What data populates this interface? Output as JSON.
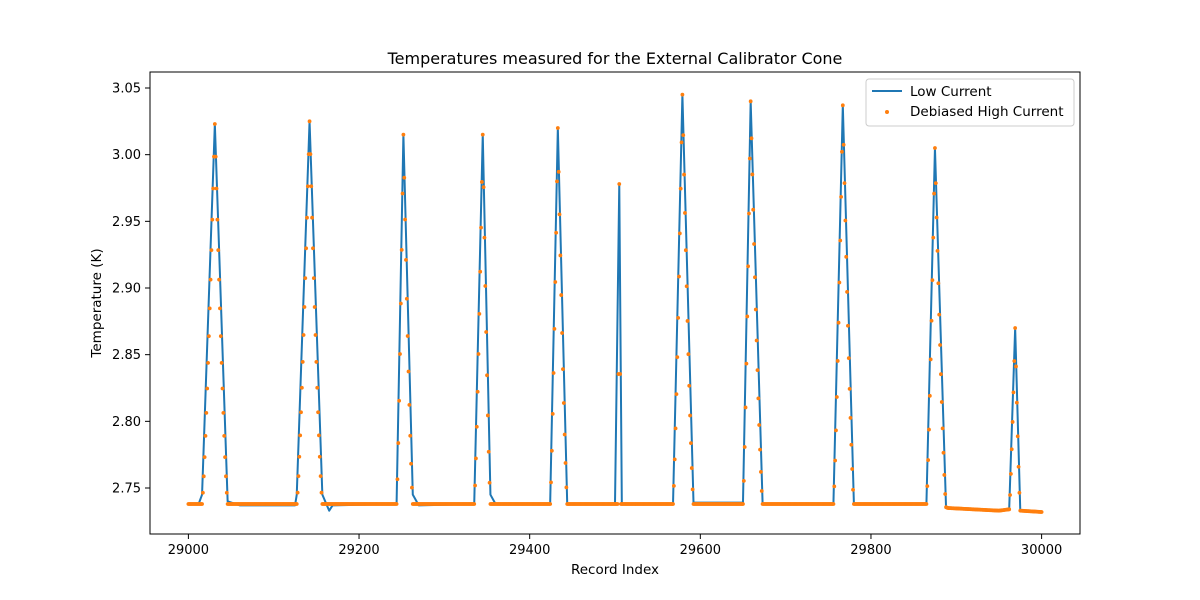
{
  "chart_data": {
    "type": "line",
    "title": "Temperatures measured for the External Calibrator Cone",
    "xlabel": "Record Index",
    "ylabel": "Temperature (K)",
    "xlim": [
      28955,
      30045
    ],
    "ylim": [
      2.7155,
      3.062
    ],
    "x_ticks": [
      29000,
      29200,
      29400,
      29600,
      29800,
      30000
    ],
    "y_ticks": [
      2.75,
      2.8,
      2.85,
      2.9,
      2.95,
      3.0,
      3.05
    ],
    "y_tick_labels": [
      "2.75",
      "2.80",
      "2.85",
      "2.90",
      "2.95",
      "3.00",
      "3.05"
    ],
    "grid": false,
    "legend_position": "top-right",
    "series": [
      {
        "name": "Low Current",
        "style": "line",
        "color": "#1f77b4",
        "x_range": [
          29000,
          30000
        ],
        "points": [
          [
            29000,
            2.738
          ],
          [
            29012,
            2.738
          ],
          [
            29016,
            2.745
          ],
          [
            29031,
            3.023
          ],
          [
            29046,
            2.74
          ],
          [
            29060,
            2.737
          ],
          [
            29125,
            2.737
          ],
          [
            29127,
            2.745
          ],
          [
            29142,
            3.025
          ],
          [
            29157,
            2.745
          ],
          [
            29165,
            2.733
          ],
          [
            29169,
            2.737
          ],
          [
            29244,
            2.738
          ],
          [
            29252,
            3.015
          ],
          [
            29263,
            2.745
          ],
          [
            29270,
            2.737
          ],
          [
            29335,
            2.738
          ],
          [
            29345,
            3.015
          ],
          [
            29354,
            2.745
          ],
          [
            29360,
            2.738
          ],
          [
            29424,
            2.738
          ],
          [
            29433,
            3.02
          ],
          [
            29444,
            2.738
          ],
          [
            29500,
            2.738
          ],
          [
            29505,
            2.978
          ],
          [
            29508,
            2.738
          ],
          [
            29568,
            2.738
          ],
          [
            29579,
            3.045
          ],
          [
            29592,
            2.739
          ],
          [
            29650,
            2.739
          ],
          [
            29659,
            3.04
          ],
          [
            29673,
            2.738
          ],
          [
            29756,
            2.738
          ],
          [
            29767,
            3.037
          ],
          [
            29780,
            2.738
          ],
          [
            29865,
            2.738
          ],
          [
            29875,
            3.005
          ],
          [
            29888,
            2.735
          ],
          [
            29950,
            2.733
          ],
          [
            29962,
            2.734
          ],
          [
            29969,
            2.87
          ],
          [
            29975,
            2.733
          ],
          [
            30000,
            2.732
          ]
        ]
      },
      {
        "name": "Debiased High Current",
        "style": "scatter",
        "color": "#ff7f0e",
        "peaks": [
          {
            "x": 29031,
            "y": 3.023,
            "rise": 15,
            "fall": 15
          },
          {
            "x": 29142,
            "y": 3.025,
            "rise": 15,
            "fall": 15
          },
          {
            "x": 29252,
            "y": 3.015,
            "rise": 8,
            "fall": 11
          },
          {
            "x": 29345,
            "y": 3.015,
            "rise": 10,
            "fall": 9
          },
          {
            "x": 29433,
            "y": 3.02,
            "rise": 9,
            "fall": 11
          },
          {
            "x": 29505,
            "y": 2.978,
            "rise": 2,
            "fall": 2
          },
          {
            "x": 29579,
            "y": 3.045,
            "rise": 11,
            "fall": 13
          },
          {
            "x": 29659,
            "y": 3.04,
            "rise": 9,
            "fall": 14
          },
          {
            "x": 29767,
            "y": 3.037,
            "rise": 11,
            "fall": 13
          },
          {
            "x": 29875,
            "y": 3.005,
            "rise": 10,
            "fall": 13
          },
          {
            "x": 29969,
            "y": 2.87,
            "rise": 7,
            "fall": 6
          }
        ],
        "baseline": [
          [
            29000,
            2.738
          ],
          [
            29880,
            2.738
          ],
          [
            29890,
            2.735
          ],
          [
            29950,
            2.733
          ],
          [
            29962,
            2.734
          ],
          [
            29975,
            2.733
          ],
          [
            30000,
            2.732
          ]
        ]
      }
    ]
  }
}
